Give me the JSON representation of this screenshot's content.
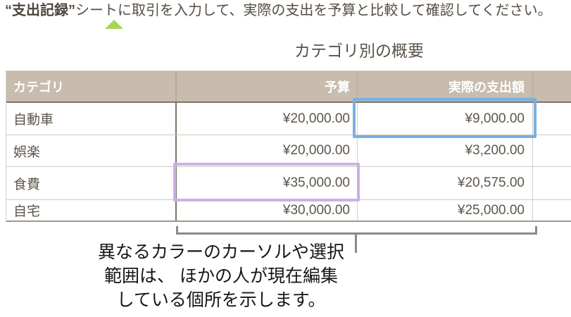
{
  "instruction": {
    "highlight": "“支出記録”",
    "rest": "シートに取引を入力して、実際の支出を予算と比較して確認してください。"
  },
  "sheet_title": "カテゴリ別の概要",
  "table": {
    "columns": {
      "category": "カテゴリ",
      "budget": "予算",
      "actual": "実際の支出額"
    },
    "rows": [
      {
        "category": "自動車",
        "budget": "¥20,000.00",
        "actual": "¥9,000.00"
      },
      {
        "category": "娯楽",
        "budget": "¥20,000.00",
        "actual": "¥3,200.00"
      },
      {
        "category": "食費",
        "budget": "¥35,000.00",
        "actual": "¥20,575.00"
      },
      {
        "category": "自宅",
        "budget": "¥30,000.00",
        "actual": "¥25,000.00"
      }
    ]
  },
  "caption": {
    "lines": [
      "異なるカラーのカーソルや選択",
      "範囲は、 ほかの人が現在編集",
      "している個所を示します。"
    ]
  },
  "colors": {
    "collaborator_blue": "#79AFE1",
    "collaborator_purple": "#CBB0E3",
    "header_background": "#C7BCAD",
    "marker_green": "#A9D45A",
    "table_text": "#5D554B",
    "bracket_gray": "#8A8A8A"
  },
  "icons": {
    "pointer_triangle": "triangle-up"
  }
}
